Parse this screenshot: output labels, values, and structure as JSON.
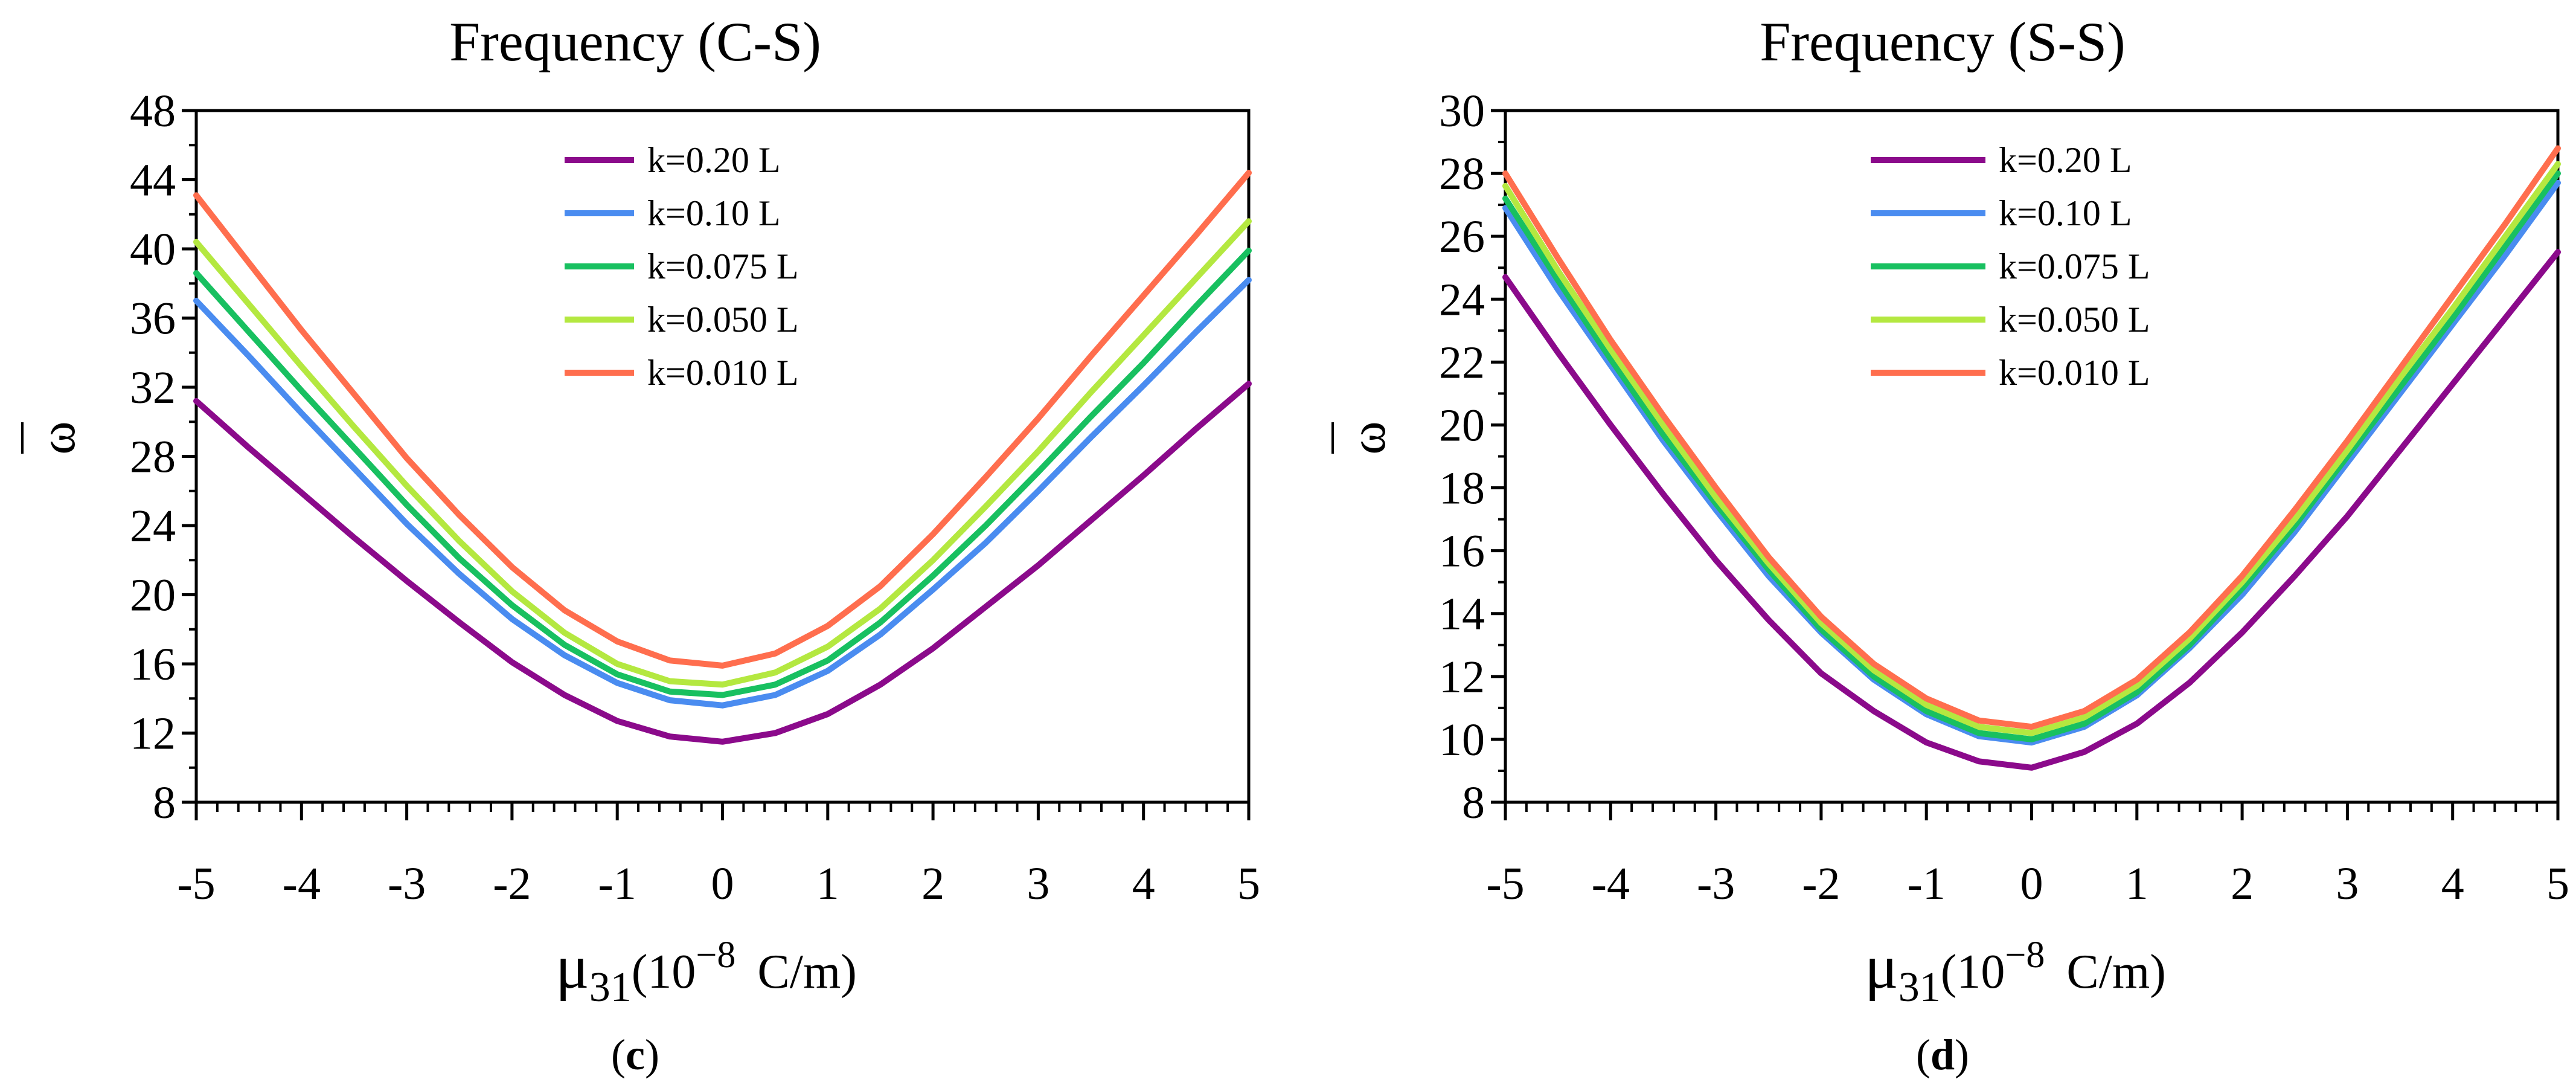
{
  "chart_data": [
    {
      "type": "line",
      "title": "Frequency (C-S)",
      "ylabel": "ω",
      "xlabel_mu": "μ",
      "xlabel_sub": "31",
      "xlabel_paren": "(10",
      "xlabel_exp": "−8",
      "xlabel_unit": "C/m)",
      "panel_open": "(",
      "panel_label": "c",
      "panel_close": ")",
      "xlim": [
        -5,
        5
      ],
      "ylim": [
        8,
        48
      ],
      "xticks": [
        -5,
        -4,
        -3,
        -2,
        -1,
        0,
        1,
        2,
        3,
        4,
        5
      ],
      "yticks": [
        8,
        12,
        16,
        20,
        24,
        28,
        32,
        36,
        40,
        44,
        48
      ],
      "x": [
        -5,
        -4.5,
        -4,
        -3.5,
        -3,
        -2.5,
        -2,
        -1.5,
        -1,
        -0.5,
        0,
        0.5,
        1,
        1.5,
        2,
        2.5,
        3,
        3.5,
        4,
        4.5,
        5
      ],
      "series": [
        {
          "name": "k=0.20 L",
          "color": "#8B0A8B",
          "values": [
            31.2,
            28.5,
            25.9,
            23.3,
            20.8,
            18.4,
            16.1,
            14.2,
            12.7,
            11.8,
            11.5,
            12.0,
            13.1,
            14.8,
            16.9,
            19.3,
            21.7,
            24.3,
            26.9,
            29.6,
            32.2
          ]
        },
        {
          "name": "k=0.10 L",
          "color": "#4A8CF0",
          "values": [
            37.0,
            33.8,
            30.5,
            27.3,
            24.1,
            21.2,
            18.6,
            16.5,
            14.9,
            13.9,
            13.6,
            14.2,
            15.6,
            17.7,
            20.3,
            23.0,
            26.0,
            29.1,
            32.1,
            35.2,
            38.2
          ]
        },
        {
          "name": "k=0.075 L",
          "color": "#18C060",
          "values": [
            38.6,
            35.2,
            31.8,
            28.5,
            25.2,
            22.1,
            19.4,
            17.1,
            15.4,
            14.4,
            14.2,
            14.8,
            16.2,
            18.4,
            21.1,
            24.0,
            27.1,
            30.3,
            33.4,
            36.7,
            39.9
          ]
        },
        {
          "name": "k=0.050 L",
          "color": "#B4E840",
          "values": [
            40.4,
            36.8,
            33.2,
            29.7,
            26.3,
            23.1,
            20.2,
            17.8,
            16.0,
            15.0,
            14.8,
            15.5,
            17.0,
            19.2,
            22.0,
            25.1,
            28.3,
            31.7,
            35.0,
            38.3,
            41.6
          ]
        },
        {
          "name": "k=0.010  L",
          "color": "#FF6E4E",
          "values": [
            43.1,
            39.2,
            35.3,
            31.6,
            27.9,
            24.6,
            21.6,
            19.1,
            17.3,
            16.2,
            15.9,
            16.6,
            18.2,
            20.5,
            23.5,
            26.8,
            30.2,
            33.8,
            37.3,
            40.8,
            44.4
          ]
        }
      ]
    },
    {
      "type": "line",
      "title": "Frequency (S-S)",
      "ylabel": "ω",
      "xlabel_mu": "μ",
      "xlabel_sub": "31",
      "xlabel_paren": "(10",
      "xlabel_exp": "−8",
      "xlabel_unit": "C/m)",
      "panel_open": "(",
      "panel_label": "d",
      "panel_close": ")",
      "xlim": [
        -5,
        5
      ],
      "ylim": [
        8,
        30
      ],
      "xticks": [
        -5,
        -4,
        -3,
        -2,
        -1,
        0,
        1,
        2,
        3,
        4,
        5
      ],
      "yticks": [
        8,
        10,
        12,
        14,
        16,
        18,
        20,
        22,
        24,
        26,
        28,
        30
      ],
      "x": [
        -5,
        -4.5,
        -4,
        -3.5,
        -3,
        -2.5,
        -2,
        -1.5,
        -1,
        -0.5,
        0,
        0.5,
        1,
        1.5,
        2,
        2.5,
        3,
        3.5,
        4,
        4.5,
        5
      ],
      "series": [
        {
          "name": "k=0.20 L",
          "color": "#8B0A8B",
          "values": [
            24.7,
            22.3,
            20.0,
            17.8,
            15.7,
            13.8,
            12.1,
            10.9,
            9.9,
            9.3,
            9.1,
            9.6,
            10.5,
            11.8,
            13.4,
            15.2,
            17.1,
            19.2,
            21.3,
            23.4,
            25.5
          ]
        },
        {
          "name": "k=0.10 L",
          "color": "#4A8CF0",
          "values": [
            26.9,
            24.3,
            21.9,
            19.5,
            17.3,
            15.2,
            13.4,
            11.9,
            10.8,
            10.1,
            9.9,
            10.4,
            11.4,
            12.9,
            14.6,
            16.6,
            18.8,
            21.0,
            23.2,
            25.4,
            27.7
          ]
        },
        {
          "name": "k=0.075 L",
          "color": "#18C060",
          "values": [
            27.2,
            24.6,
            22.1,
            19.7,
            17.5,
            15.4,
            13.5,
            12.0,
            10.9,
            10.2,
            10.0,
            10.5,
            11.5,
            13.0,
            14.8,
            16.8,
            19.0,
            21.2,
            23.4,
            25.7,
            28.0
          ]
        },
        {
          "name": "k=0.050 L",
          "color": "#B4E840",
          "values": [
            27.6,
            24.9,
            22.4,
            20.0,
            17.7,
            15.6,
            13.7,
            12.2,
            11.1,
            10.4,
            10.2,
            10.7,
            11.7,
            13.2,
            15.0,
            17.0,
            19.2,
            21.5,
            23.7,
            26.0,
            28.3
          ]
        },
        {
          "name": "k=0.010  L",
          "color": "#FF6E4E",
          "values": [
            28.0,
            25.3,
            22.7,
            20.3,
            18.0,
            15.8,
            13.9,
            12.4,
            11.3,
            10.6,
            10.4,
            10.9,
            11.9,
            13.4,
            15.2,
            17.3,
            19.5,
            21.8,
            24.1,
            26.4,
            28.8
          ]
        }
      ]
    }
  ]
}
